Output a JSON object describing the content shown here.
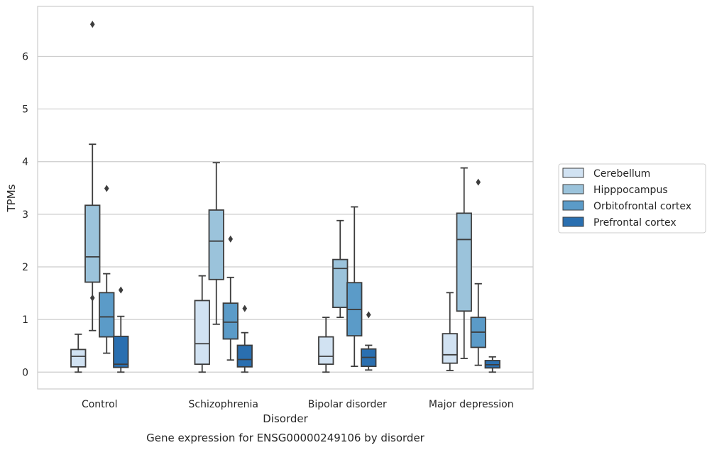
{
  "caption": "Gene expression for ENSG00000249106 by disorder",
  "chart_data": {
    "type": "box",
    "xlabel": "Disorder",
    "ylabel": "TPMs",
    "ylim": [
      -0.32,
      6.95
    ],
    "yticks": [
      0,
      1,
      2,
      3,
      4,
      5,
      6
    ],
    "grid": "horizontal",
    "legend_position": "right",
    "categories": [
      "Control",
      "Schizophrenia",
      "Bipolar disorder",
      "Major depression"
    ],
    "series": [
      {
        "name": "Cerebellum",
        "color": "#d1e2f2",
        "boxes": [
          {
            "whislo": 0.0,
            "q1": 0.1,
            "med": 0.3,
            "q3": 0.43,
            "whishi": 0.72,
            "fliers": []
          },
          {
            "whislo": 0.0,
            "q1": 0.15,
            "med": 0.54,
            "q3": 1.36,
            "whishi": 1.83,
            "fliers": []
          },
          {
            "whislo": 0.0,
            "q1": 0.15,
            "med": 0.3,
            "q3": 0.67,
            "whishi": 1.04,
            "fliers": []
          },
          {
            "whislo": 0.03,
            "q1": 0.17,
            "med": 0.33,
            "q3": 0.73,
            "whishi": 1.51,
            "fliers": []
          }
        ]
      },
      {
        "name": "Hipppocampus",
        "color": "#9bc3db",
        "boxes": [
          {
            "whislo": 0.79,
            "q1": 1.71,
            "med": 2.19,
            "q3": 3.17,
            "whishi": 4.33,
            "fliers": [
              1.41,
              6.61
            ]
          },
          {
            "whislo": 0.91,
            "q1": 1.76,
            "med": 2.49,
            "q3": 3.08,
            "whishi": 3.98,
            "fliers": []
          },
          {
            "whislo": 1.04,
            "q1": 1.23,
            "med": 1.97,
            "q3": 2.14,
            "whishi": 2.88,
            "fliers": []
          },
          {
            "whislo": 0.26,
            "q1": 1.16,
            "med": 2.52,
            "q3": 3.02,
            "whishi": 3.88,
            "fliers": []
          }
        ]
      },
      {
        "name": "Orbitofrontal cortex",
        "color": "#5b9bc8",
        "boxes": [
          {
            "whislo": 0.36,
            "q1": 0.67,
            "med": 1.05,
            "q3": 1.51,
            "whishi": 1.87,
            "fliers": [
              3.49
            ]
          },
          {
            "whislo": 0.23,
            "q1": 0.63,
            "med": 0.95,
            "q3": 1.31,
            "whishi": 1.8,
            "fliers": [
              2.53
            ]
          },
          {
            "whislo": 0.11,
            "q1": 0.69,
            "med": 1.19,
            "q3": 1.7,
            "whishi": 3.14,
            "fliers": []
          },
          {
            "whislo": 0.13,
            "q1": 0.47,
            "med": 0.76,
            "q3": 1.04,
            "whishi": 1.68,
            "fliers": [
              3.61
            ]
          }
        ]
      },
      {
        "name": "Prefrontal cortex",
        "color": "#2a6fb0",
        "boxes": [
          {
            "whislo": 0.0,
            "q1": 0.09,
            "med": 0.15,
            "q3": 0.68,
            "whishi": 1.06,
            "fliers": [
              1.56
            ]
          },
          {
            "whislo": 0.0,
            "q1": 0.1,
            "med": 0.24,
            "q3": 0.51,
            "whishi": 0.75,
            "fliers": [
              1.21
            ]
          },
          {
            "whislo": 0.04,
            "q1": 0.11,
            "med": 0.28,
            "q3": 0.44,
            "whishi": 0.51,
            "fliers": [
              1.09
            ]
          },
          {
            "whislo": 0.0,
            "q1": 0.08,
            "med": 0.14,
            "q3": 0.22,
            "whishi": 0.29,
            "fliers": []
          }
        ]
      }
    ]
  }
}
